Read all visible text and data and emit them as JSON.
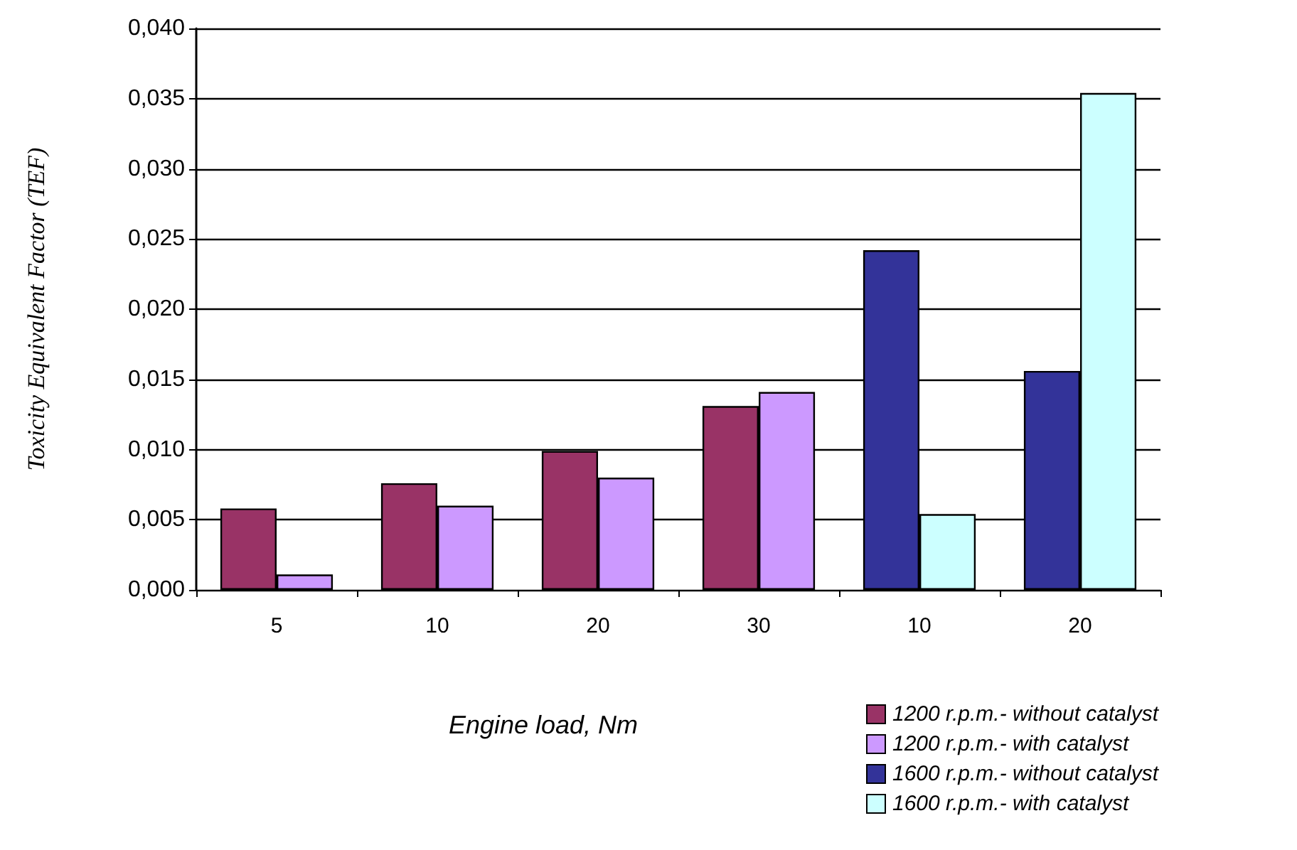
{
  "chart_data": {
    "type": "bar",
    "xlabel": "Engine load, Nm",
    "ylabel": "Toxicity Equivalent Factor (TEF)",
    "categories": [
      "5",
      "10",
      "20",
      "30",
      "10",
      "20"
    ],
    "series": [
      {
        "name": "1200 r.p.m.- without catalyst",
        "color": "#993366",
        "values": [
          0.0058,
          0.0076,
          0.0099,
          0.0131,
          null,
          null
        ]
      },
      {
        "name": "1200 r.p.m.- with catalyst",
        "color": "#cc99ff",
        "values": [
          0.0011,
          0.006,
          0.008,
          0.0141,
          null,
          null
        ]
      },
      {
        "name": "1600 r.p.m.- without catalyst",
        "color": "#333399",
        "values": [
          null,
          null,
          null,
          null,
          0.0242,
          0.0156
        ]
      },
      {
        "name": "1600 r.p.m.- with catalyst",
        "color": "#ccffff",
        "values": [
          null,
          null,
          null,
          null,
          0.0054,
          0.0354
        ]
      }
    ],
    "ylim": [
      0,
      0.04
    ],
    "yticks": [
      {
        "value": 0,
        "label": "0,000"
      },
      {
        "value": 0.005,
        "label": "0,005"
      },
      {
        "value": 0.01,
        "label": "0,010"
      },
      {
        "value": 0.015,
        "label": "0,015"
      },
      {
        "value": 0.02,
        "label": "0,020"
      },
      {
        "value": 0.025,
        "label": "0,025"
      },
      {
        "value": 0.03,
        "label": "0,030"
      },
      {
        "value": 0.035,
        "label": "0,035"
      },
      {
        "value": 0.04,
        "label": "0,040"
      }
    ],
    "grid": "y",
    "legend": "bottom right"
  }
}
